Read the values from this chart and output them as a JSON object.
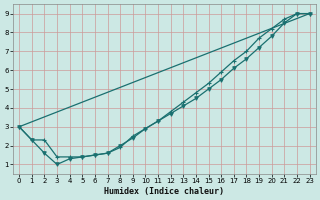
{
  "xlabel": "Humidex (Indice chaleur)",
  "background_color": "#cce8e4",
  "grid_color": "#cc9999",
  "line_color": "#1a7070",
  "xlim": [
    -0.5,
    23.5
  ],
  "ylim": [
    0.5,
    9.5
  ],
  "xticks": [
    0,
    1,
    2,
    3,
    4,
    5,
    6,
    7,
    8,
    9,
    10,
    11,
    12,
    13,
    14,
    15,
    16,
    17,
    18,
    19,
    20,
    21,
    22,
    23
  ],
  "yticks": [
    1,
    2,
    3,
    4,
    5,
    6,
    7,
    8,
    9
  ],
  "line1_x": [
    0,
    1,
    2,
    3,
    4,
    5,
    6,
    7,
    8,
    9,
    10,
    11,
    12,
    13,
    14,
    15,
    16,
    17,
    18,
    19,
    20,
    21,
    22,
    23
  ],
  "line1_y": [
    3.0,
    2.3,
    1.6,
    1.0,
    1.3,
    1.4,
    1.5,
    1.6,
    2.0,
    2.4,
    2.9,
    3.3,
    3.7,
    4.1,
    4.5,
    5.0,
    5.5,
    6.1,
    6.6,
    7.2,
    7.8,
    8.5,
    9.0,
    9.0
  ],
  "line2_x": [
    0,
    1,
    2,
    3,
    4,
    5,
    6,
    7,
    8,
    9,
    10,
    11,
    12,
    13,
    14,
    15,
    16,
    17,
    18,
    19,
    20,
    21,
    22,
    23
  ],
  "line2_y": [
    3.0,
    2.3,
    2.3,
    1.4,
    1.4,
    1.4,
    1.5,
    1.6,
    1.9,
    2.5,
    2.9,
    3.3,
    3.8,
    4.3,
    4.8,
    5.3,
    5.9,
    6.5,
    7.0,
    7.7,
    8.2,
    8.7,
    9.0,
    9.0
  ],
  "line3_x": [
    0,
    23
  ],
  "line3_y": [
    3.0,
    9.0
  ]
}
